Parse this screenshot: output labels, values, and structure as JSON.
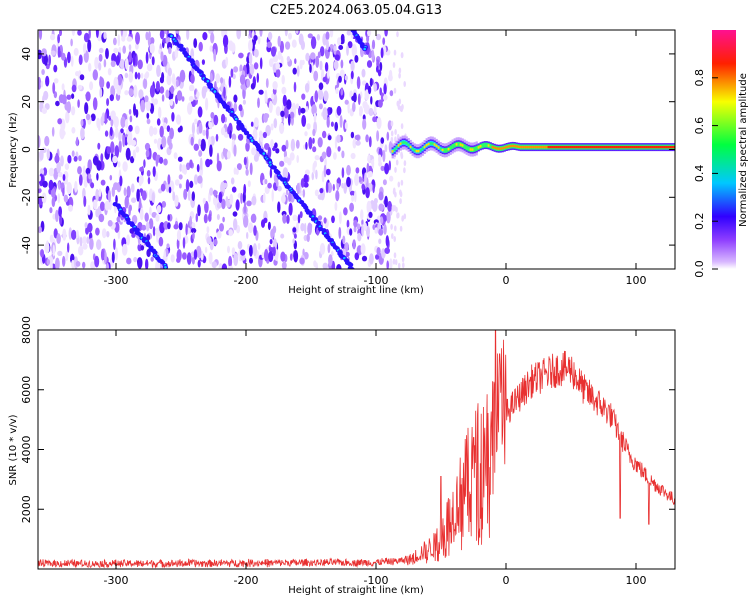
{
  "title": "C2E5.2024.063.05.04.G13",
  "chart_data": [
    {
      "type": "heatmap",
      "xlabel": "Height of straight line (km)",
      "ylabel": "Frequency (Hz)",
      "xlim": [
        -360,
        130
      ],
      "ylim": [
        -50,
        50
      ],
      "xticks": [
        -300,
        -200,
        -100,
        0,
        100
      ],
      "yticks": [
        -40,
        -20,
        0,
        20,
        40
      ],
      "colorbar": {
        "label": "Normalized spectral amplitude",
        "range": [
          0.0,
          1.0
        ],
        "ticks": [
          "0.0",
          "0.2",
          "0.4",
          "0.6",
          "0.8"
        ],
        "colormap": [
          "#ffffff",
          "#b070ff",
          "#3000ff",
          "#00e0ff",
          "#00ff60",
          "#ffff00",
          "#ff2000",
          "#ff1090"
        ]
      },
      "features": {
        "noise_region_x": [
          -360,
          -88
        ],
        "diagonal_streaks": [
          {
            "x": [
              -258,
              -118
            ],
            "y": [
              48,
              -50
            ]
          },
          {
            "x": [
              -300,
              -262
            ],
            "y": [
              -23,
              -49
            ]
          },
          {
            "x": [
              -118,
              -108
            ],
            "y": [
              50,
              42
            ]
          }
        ],
        "signal_band": {
          "x": [
            -88,
            130
          ],
          "y_center": 1
        }
      }
    },
    {
      "type": "line",
      "xlabel": "Height of straight line (km)",
      "ylabel": "SNR (10 * v/v)",
      "xlim": [
        -360,
        130
      ],
      "ylim": [
        0,
        8000
      ],
      "xticks": [
        -300,
        -200,
        -100,
        0,
        100
      ],
      "yticks": [
        2000,
        4000,
        6000,
        8000
      ],
      "series": [
        {
          "color": "#e83030",
          "envelope": {
            "x": [
              -360,
              -300,
              -200,
              -100,
              -75,
              -55,
              -40,
              -30,
              -20,
              -10,
              0,
              20,
              40,
              50,
              60,
              80,
              95,
              110,
              130
            ],
            "y": [
              180,
              180,
              200,
              220,
              300,
              800,
              2000,
              3000,
              3800,
              4500,
              5200,
              6300,
              6700,
              6700,
              6000,
              5200,
              3800,
              3000,
              2300
            ]
          },
          "spikes": [
            {
              "x": -8,
              "y": 8000
            },
            {
              "x": -5,
              "y": 7200
            },
            {
              "x": -50,
              "y": 3100
            },
            {
              "x": -25,
              "y": 4400
            },
            {
              "x": 88,
              "y": 1700
            },
            {
              "x": 110,
              "y": 1500
            }
          ]
        }
      ]
    }
  ]
}
